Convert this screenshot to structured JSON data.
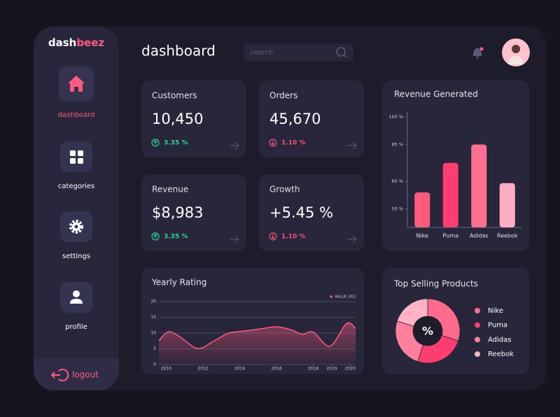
{
  "brand": {
    "first": "dash",
    "second": "beez"
  },
  "nav": [
    {
      "label": "dashboard",
      "active": true
    },
    {
      "label": "categories",
      "active": false
    },
    {
      "label": "settings",
      "active": false
    },
    {
      "label": "profile",
      "active": false
    }
  ],
  "logout": "logout",
  "header": {
    "title": "dashboard",
    "search_placeholder": "search"
  },
  "cards": [
    {
      "title": "Customers",
      "value": "10,450",
      "change": "3.35 %",
      "trend": "up"
    },
    {
      "title": "Orders",
      "value": "45,670",
      "change": "1.10 %",
      "trend": "down"
    },
    {
      "title": "Revenue",
      "value": "$8,983",
      "change": "3.35 %",
      "trend": "up"
    },
    {
      "title": "Growth",
      "value": "+5.45 %",
      "change": "1.10 %",
      "trend": "down"
    }
  ],
  "revenue_chart": {
    "type": "bar",
    "title": "Revenue Generated",
    "categories": [
      "Nike",
      "Puma",
      "Adidas",
      "Reebok"
    ],
    "values": [
      59,
      75,
      85,
      64
    ],
    "colors": [
      "#ff5a7e",
      "#ff3d6e",
      "#ff6f92",
      "#ffadc2"
    ],
    "ylim": [
      40,
      100
    ],
    "yticks": [
      {
        "value": 50,
        "label": "50 %"
      },
      {
        "value": 65,
        "label": "65 %"
      },
      {
        "value": 85,
        "label": "85 %"
      },
      {
        "value": 100,
        "label": "100 %"
      }
    ]
  },
  "rating_chart": {
    "type": "area",
    "title": "Yearly Rating",
    "x": [
      2009.6,
      2010.1,
      2010.7,
      2011.7,
      2012.6,
      2013.4,
      2014.2,
      2015.2,
      2016,
      2016.8,
      2017.4,
      2018,
      2018.9,
      2019.8,
      2020.3
    ],
    "series": [
      {
        "name": "VALUE (01)",
        "color": "#ff5a7e",
        "values": [
          7.5,
          10.4,
          9,
          5.1,
          7.5,
          10,
          10.6,
          11.4,
          12,
          11,
          9.6,
          10.3,
          5.8,
          13,
          11.5
        ]
      }
    ],
    "xlim": [
      2009.6,
      2020.3
    ],
    "xticks": [
      2010,
      2012,
      2014,
      2016,
      2018,
      2019,
      2020
    ],
    "ylim": [
      0,
      20
    ],
    "yticks": [
      0,
      5,
      10,
      15,
      20
    ],
    "grid": true
  },
  "products_chart": {
    "type": "donut",
    "title": "Top Selling Products",
    "center_label": "%",
    "categories": [
      "Nike",
      "Puma",
      "Adidas",
      "Reebok"
    ],
    "values": [
      30,
      25,
      25,
      20
    ],
    "colors": [
      "#ff6b8a",
      "#ff3d6e",
      "#ff7f9c",
      "#ffb3c4"
    ]
  }
}
